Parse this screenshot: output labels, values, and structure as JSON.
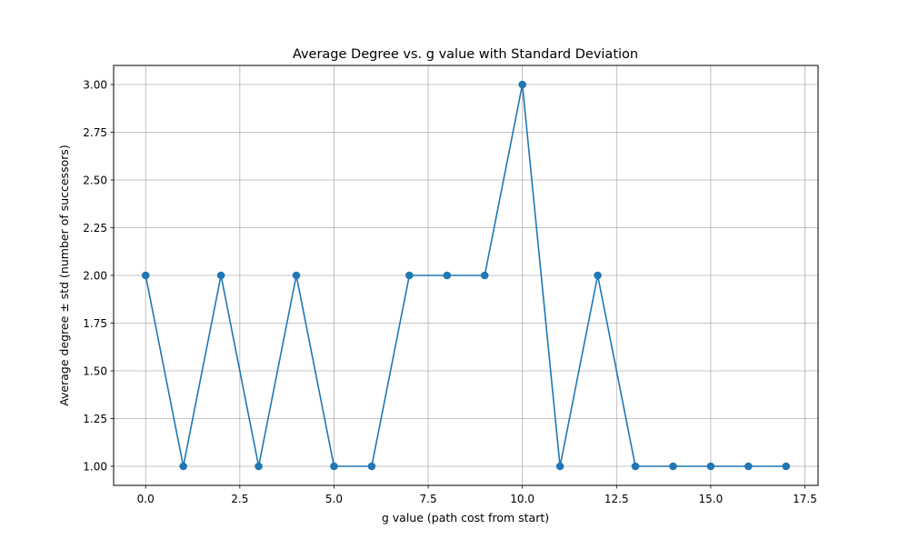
{
  "chart_data": {
    "type": "line",
    "title": "Average Degree vs. g value with Standard Deviation",
    "xlabel": "g value (path cost from start)",
    "ylabel": "Average degree ± std (number of successors)",
    "x": [
      0,
      1,
      2,
      3,
      4,
      5,
      6,
      7,
      8,
      9,
      10,
      11,
      12,
      13,
      14,
      15,
      16,
      17
    ],
    "series": [
      {
        "values": [
          2,
          1,
          2,
          1,
          2,
          1,
          1,
          2,
          2,
          2,
          3,
          1,
          2,
          1,
          1,
          1,
          1,
          1
        ],
        "color": "#1f77b4",
        "marker": "circle"
      }
    ],
    "xlim": [
      -0.85,
      17.85
    ],
    "ylim": [
      0.9,
      3.1
    ],
    "xticks": [
      0,
      2.5,
      5,
      7.5,
      10,
      12.5,
      15,
      17.5
    ],
    "xtick_labels": [
      "0.0",
      "2.5",
      "5.0",
      "7.5",
      "10.0",
      "12.5",
      "15.0",
      "17.5"
    ],
    "yticks": [
      1,
      1.25,
      1.5,
      1.75,
      2,
      2.25,
      2.5,
      2.75,
      3
    ],
    "ytick_labels": [
      "1.00",
      "1.25",
      "1.50",
      "1.75",
      "2.00",
      "2.25",
      "2.50",
      "2.75",
      "3.00"
    ],
    "grid": true,
    "legend": "none"
  }
}
